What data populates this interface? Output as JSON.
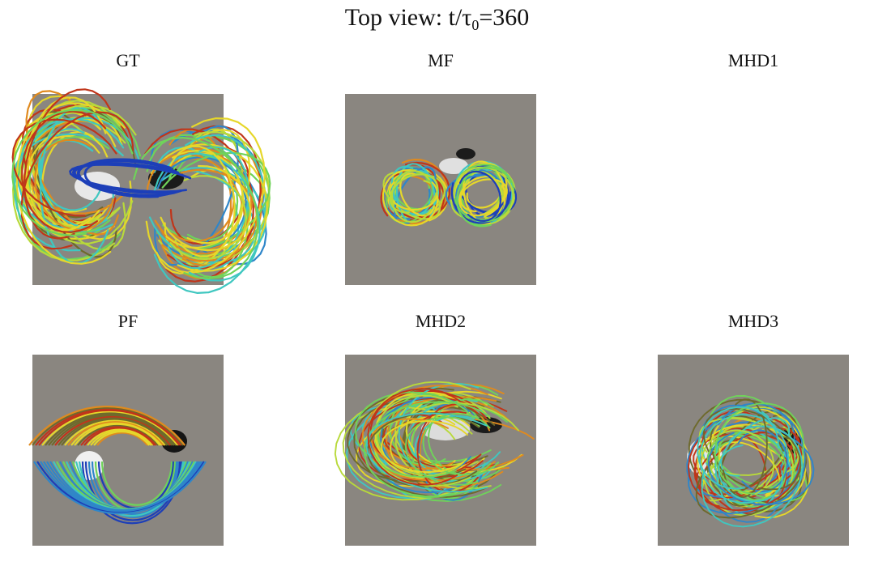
{
  "figure": {
    "title_prefix": "Top view: t/τ",
    "title_sub": "0",
    "title_suffix": "=360"
  },
  "panels": [
    {
      "label": "GT",
      "has_image": true
    },
    {
      "label": "MF",
      "has_image": true
    },
    {
      "label": "MHD1",
      "has_image": false
    },
    {
      "label": "PF",
      "has_image": true
    },
    {
      "label": "MHD2",
      "has_image": true
    },
    {
      "label": "MHD3",
      "has_image": true
    }
  ],
  "colors": {
    "background": "#8a8680",
    "line_palette": [
      "#1d3fb8",
      "#2f86c9",
      "#3fc7c0",
      "#6fd35a",
      "#b8d93a",
      "#e6d72a",
      "#e08a1e",
      "#c0351a",
      "#6e6a2c"
    ]
  }
}
